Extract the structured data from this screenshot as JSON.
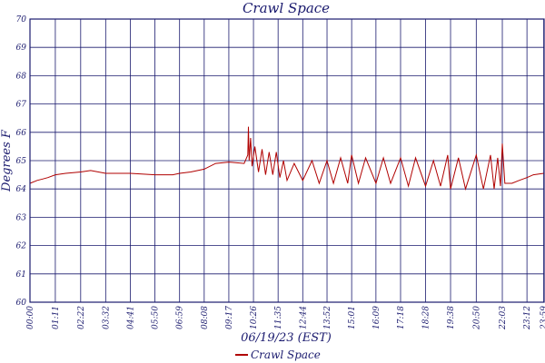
{
  "chart_data": {
    "type": "line",
    "title": "Crawl Space",
    "xlabel": "06/19/23 (EST)",
    "ylabel": "Degrees F",
    "ylim": [
      60,
      70
    ],
    "yticks": [
      "60",
      "61",
      "62",
      "63",
      "64",
      "65",
      "66",
      "67",
      "68",
      "69",
      "70"
    ],
    "xlim_minutes": [
      0,
      1440
    ],
    "grid": true,
    "legend_position": "bottom-center",
    "xticks": [
      {
        "label": "00:00",
        "minute": 0
      },
      {
        "label": "01:11",
        "minute": 71
      },
      {
        "label": "02:22",
        "minute": 142
      },
      {
        "label": "03:32",
        "minute": 212
      },
      {
        "label": "04:41",
        "minute": 281
      },
      {
        "label": "05:50",
        "minute": 350
      },
      {
        "label": "06:59",
        "minute": 419
      },
      {
        "label": "08:08",
        "minute": 488
      },
      {
        "label": "09:17",
        "minute": 557
      },
      {
        "label": "10:26",
        "minute": 626
      },
      {
        "label": "11:35",
        "minute": 695
      },
      {
        "label": "12:44",
        "minute": 764
      },
      {
        "label": "13:52",
        "minute": 832
      },
      {
        "label": "15:01",
        "minute": 901
      },
      {
        "label": "16:09",
        "minute": 969
      },
      {
        "label": "17:18",
        "minute": 1038
      },
      {
        "label": "18:28",
        "minute": 1108
      },
      {
        "label": "19:38",
        "minute": 1178
      },
      {
        "label": "20:50",
        "minute": 1250
      },
      {
        "label": "22:03",
        "minute": 1323
      },
      {
        "label": "23:12",
        "minute": 1392
      },
      {
        "label": "23:59",
        "minute": 1439
      }
    ],
    "series": [
      {
        "name": "Crawl Space",
        "color": "#b00000",
        "x_minutes": [
          0,
          20,
          35,
          50,
          71,
          100,
          142,
          170,
          212,
          281,
          350,
          400,
          419,
          450,
          488,
          520,
          557,
          600,
          610,
          612,
          614,
          618,
          622,
          630,
          640,
          650,
          660,
          670,
          680,
          690,
          700,
          710,
          720,
          740,
          764,
          790,
          810,
          832,
          850,
          870,
          890,
          901,
          920,
          940,
          969,
          990,
          1010,
          1038,
          1060,
          1080,
          1108,
          1130,
          1150,
          1170,
          1178,
          1200,
          1220,
          1250,
          1270,
          1290,
          1300,
          1310,
          1318,
          1323,
          1330,
          1350,
          1370,
          1392,
          1410,
          1439
        ],
        "y_values": [
          64.2,
          64.3,
          64.35,
          64.4,
          64.5,
          64.55,
          64.6,
          64.65,
          64.55,
          64.55,
          64.5,
          64.5,
          64.55,
          64.6,
          64.7,
          64.9,
          64.95,
          64.9,
          65.2,
          66.2,
          65.0,
          65.8,
          64.8,
          65.5,
          64.6,
          65.4,
          64.5,
          65.3,
          64.5,
          65.3,
          64.4,
          65.0,
          64.3,
          64.9,
          64.3,
          65.0,
          64.2,
          65.0,
          64.2,
          65.1,
          64.2,
          65.2,
          64.2,
          65.1,
          64.2,
          65.1,
          64.2,
          65.1,
          64.1,
          65.1,
          64.1,
          65.0,
          64.1,
          65.2,
          64.0,
          65.1,
          64.0,
          65.2,
          64.0,
          65.2,
          64.0,
          65.1,
          64.1,
          65.6,
          64.2,
          64.2,
          64.3,
          64.4,
          64.5,
          64.55
        ]
      }
    ]
  }
}
